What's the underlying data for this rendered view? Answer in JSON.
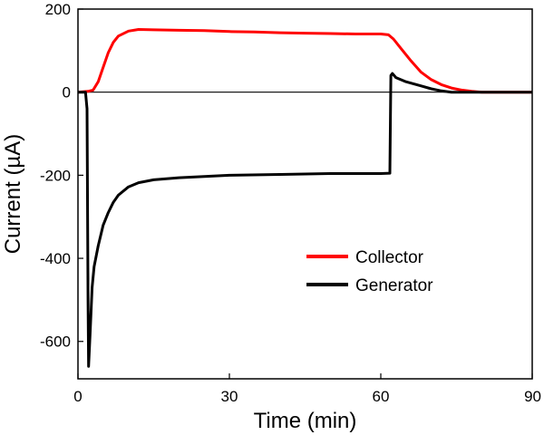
{
  "chart_data": {
    "type": "line",
    "xlabel": "Time (min)",
    "ylabel": "Current (µA)",
    "xlim": [
      0,
      90
    ],
    "ylim": [
      -690,
      200
    ],
    "x_ticks": [
      0,
      30,
      60,
      90
    ],
    "y_ticks": [
      200,
      0,
      -200,
      -400,
      -600
    ],
    "x_tick_labels": [
      "0",
      "30",
      "60",
      "90"
    ],
    "y_tick_labels": [
      "200",
      "0",
      "-200",
      "-400",
      "-600"
    ],
    "reference_line_y": 0,
    "grid": false,
    "legend_position": "center-right",
    "series": [
      {
        "name": "Collector",
        "color": "#ff0000",
        "points": [
          [
            0,
            0
          ],
          [
            2,
            2
          ],
          [
            3,
            5
          ],
          [
            4,
            25
          ],
          [
            5,
            60
          ],
          [
            6,
            95
          ],
          [
            7,
            120
          ],
          [
            8,
            135
          ],
          [
            10,
            147
          ],
          [
            12,
            151
          ],
          [
            15,
            150
          ],
          [
            20,
            149
          ],
          [
            25,
            148
          ],
          [
            30,
            146
          ],
          [
            35,
            145
          ],
          [
            40,
            143
          ],
          [
            45,
            142
          ],
          [
            50,
            141
          ],
          [
            55,
            140
          ],
          [
            60,
            140
          ],
          [
            61.5,
            138
          ],
          [
            62.5,
            128
          ],
          [
            64,
            105
          ],
          [
            66,
            75
          ],
          [
            68,
            48
          ],
          [
            70,
            30
          ],
          [
            72,
            18
          ],
          [
            74,
            10
          ],
          [
            76,
            5
          ],
          [
            78,
            2
          ],
          [
            80,
            0
          ],
          [
            85,
            0
          ],
          [
            90,
            0
          ]
        ]
      },
      {
        "name": "Generator",
        "color": "#000000",
        "points": [
          [
            0,
            0
          ],
          [
            1.5,
            0
          ],
          [
            1.8,
            -40
          ],
          [
            2.0,
            -500
          ],
          [
            2.1,
            -660
          ],
          [
            2.4,
            -580
          ],
          [
            2.8,
            -470
          ],
          [
            3.2,
            -420
          ],
          [
            4,
            -370
          ],
          [
            5,
            -320
          ],
          [
            6,
            -290
          ],
          [
            7,
            -265
          ],
          [
            8,
            -248
          ],
          [
            10,
            -228
          ],
          [
            12,
            -218
          ],
          [
            15,
            -211
          ],
          [
            20,
            -206
          ],
          [
            25,
            -203
          ],
          [
            30,
            -200
          ],
          [
            40,
            -198
          ],
          [
            50,
            -196
          ],
          [
            55,
            -196
          ],
          [
            60,
            -196
          ],
          [
            61.8,
            -195
          ],
          [
            62,
            40
          ],
          [
            62.3,
            45
          ],
          [
            63,
            35
          ],
          [
            65,
            25
          ],
          [
            68,
            15
          ],
          [
            70,
            8
          ],
          [
            72,
            3
          ],
          [
            74,
            0
          ],
          [
            76,
            0
          ],
          [
            90,
            0
          ]
        ]
      }
    ]
  }
}
